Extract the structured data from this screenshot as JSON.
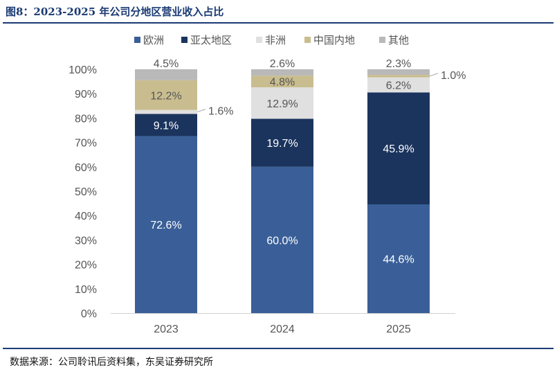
{
  "figure": {
    "title": "图8：2023-2025 年公司分地区营业收入占比",
    "source": "数据来源：公司聆讯后资料集，东吴证券研究所"
  },
  "chart_data": {
    "type": "bar",
    "stacked": true,
    "categories": [
      "2023",
      "2024",
      "2025"
    ],
    "series": [
      {
        "name": "欧洲",
        "color": "#3a5f98",
        "label_color": "#ffffff",
        "values": [
          72.6,
          60.0,
          44.6
        ]
      },
      {
        "name": "亚太地区",
        "color": "#1b345e",
        "label_color": "#ffffff",
        "values": [
          9.1,
          19.7,
          45.9
        ]
      },
      {
        "name": "非洲",
        "color": "#e0e0e0",
        "label_color": "#555555",
        "values": [
          1.6,
          12.9,
          6.2
        ]
      },
      {
        "name": "中国内地",
        "color": "#c9bd8f",
        "label_color": "#555555",
        "values": [
          12.2,
          4.8,
          1.0
        ]
      },
      {
        "name": "其他",
        "color": "#b9b9b9",
        "label_color": "#555555",
        "values": [
          4.5,
          2.6,
          2.3
        ]
      }
    ],
    "value_labels": [
      [
        "72.6%",
        "60.0%",
        "44.6%"
      ],
      [
        "9.1%",
        "19.7%",
        "45.9%"
      ],
      [
        "1.6%",
        "12.9%",
        "6.2%"
      ],
      [
        "12.2%",
        "4.8%",
        "1.0%"
      ],
      [
        "4.5%",
        "2.6%",
        "2.3%"
      ]
    ],
    "y_ticks": [
      "0%",
      "10%",
      "20%",
      "30%",
      "40%",
      "50%",
      "60%",
      "70%",
      "80%",
      "90%",
      "100%"
    ],
    "ylim": [
      0,
      100
    ],
    "legend_position": "top",
    "grid": false
  }
}
